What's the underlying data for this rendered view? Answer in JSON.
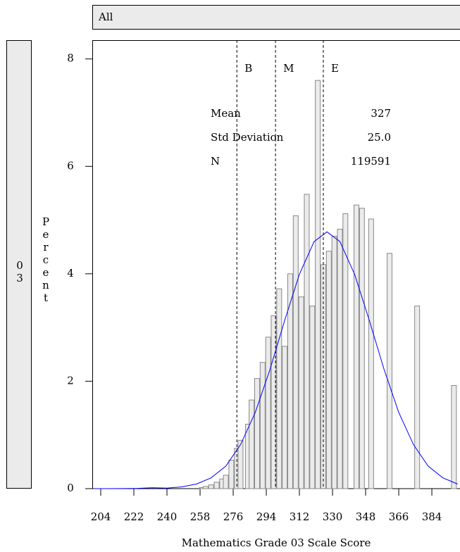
{
  "chart_data": {
    "type": "bar",
    "strip_top": "All",
    "strip_left": "03",
    "xlabel": "Mathematics Grade 03 Scale Score",
    "ylabel": "Percent",
    "x": [
      259,
      261,
      264,
      267,
      270,
      272,
      275,
      278,
      280,
      284,
      286,
      289,
      292,
      295,
      298,
      301,
      304,
      307,
      310,
      313,
      316,
      319,
      322,
      325,
      328,
      331,
      334,
      337,
      343,
      346,
      351,
      361,
      376,
      396
    ],
    "values": [
      0.02,
      0.04,
      0.07,
      0.12,
      0.18,
      0.25,
      0.53,
      0.75,
      0.9,
      1.2,
      1.65,
      2.05,
      2.35,
      2.82,
      3.22,
      3.72,
      2.65,
      4.0,
      5.08,
      3.57,
      5.48,
      3.4,
      7.6,
      4.17,
      4.42,
      4.7,
      4.83,
      5.12,
      5.28,
      5.22,
      5.02,
      4.38,
      3.4,
      1.92
    ],
    "color": "#ebebeb",
    "curve": {
      "color": "#0000ff",
      "x": [
        200,
        208,
        216,
        224,
        232,
        240,
        248,
        256,
        264,
        272,
        280,
        288,
        296,
        304,
        312,
        320,
        327,
        334,
        342,
        350,
        358,
        366,
        374,
        382,
        390,
        398
      ],
      "values": [
        0.0,
        0.0,
        0.001,
        0.005,
        0.017,
        0.011,
        0.033,
        0.085,
        0.2,
        0.42,
        0.82,
        1.42,
        2.22,
        3.13,
        3.99,
        4.6,
        4.78,
        4.6,
        3.99,
        3.13,
        2.22,
        1.42,
        0.82,
        0.42,
        0.2,
        0.085
      ]
    },
    "reference_lines": [
      {
        "label": "B",
        "value": 278
      },
      {
        "label": "M",
        "value": 299
      },
      {
        "label": "E",
        "value": 325
      }
    ],
    "stats": [
      {
        "label": "Mean",
        "value": "327"
      },
      {
        "label": "Std Deviation",
        "value": "25.0"
      },
      {
        "label": "N",
        "value": "119591"
      }
    ],
    "xlim": [
      199.4,
      399.3
    ],
    "ylim": [
      0,
      8.35
    ],
    "xticks": [
      204,
      222,
      240,
      258,
      276,
      294,
      312,
      330,
      348,
      366,
      384
    ],
    "yticks": [
      0,
      2,
      4,
      6,
      8
    ]
  }
}
